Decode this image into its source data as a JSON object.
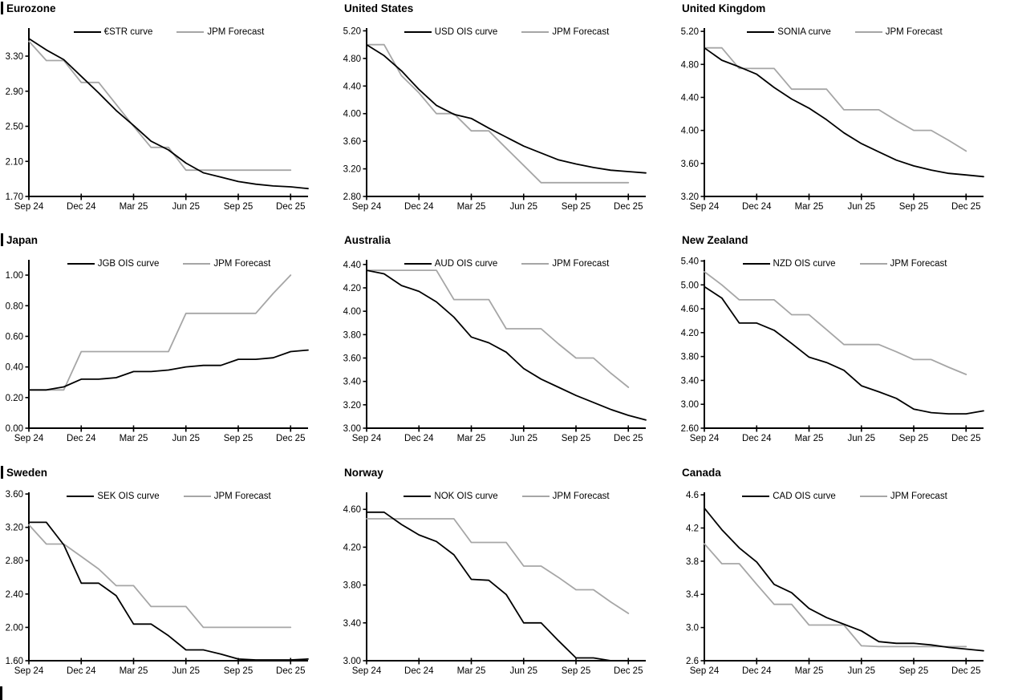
{
  "colors": {
    "main": "#000000",
    "forecast": "#a6a6a6",
    "axis": "#000000"
  },
  "x_axis": {
    "tick_labels": [
      "Sep 24",
      "Dec 24",
      "Mar 25",
      "Jun 25",
      "Sep 25",
      "Dec 25"
    ],
    "tick_positions": [
      0,
      3,
      6,
      9,
      12,
      15
    ],
    "x_max": 16
  },
  "chart_data": [
    {
      "type": "line",
      "title": "Eurozone",
      "title_bar": true,
      "ylim": [
        1.7,
        3.62
      ],
      "y_ticks": [
        1.7,
        2.1,
        2.5,
        2.9,
        3.3
      ],
      "y_decimals": 2,
      "series": [
        {
          "name": "€STR curve",
          "color_key": "main",
          "values": [
            3.5,
            3.37,
            3.26,
            3.07,
            2.88,
            2.68,
            2.51,
            2.33,
            2.23,
            2.08,
            1.97,
            1.92,
            1.87,
            1.84,
            1.82,
            1.81,
            1.79
          ]
        },
        {
          "name": "JPM Forecast",
          "color_key": "forecast",
          "values": [
            3.47,
            3.25,
            3.25,
            3.0,
            3.0,
            2.75,
            2.5,
            2.26,
            2.26,
            2.0,
            2.0,
            2.0,
            2.0,
            2.0,
            2.0,
            2.0
          ]
        }
      ]
    },
    {
      "type": "line",
      "title": "United States",
      "title_bar": false,
      "ylim": [
        2.8,
        5.24
      ],
      "y_ticks": [
        2.8,
        3.2,
        3.6,
        4.0,
        4.4,
        4.8,
        5.2
      ],
      "y_decimals": 2,
      "series": [
        {
          "name": "USD OIS curve",
          "color_key": "main",
          "values": [
            5.0,
            4.84,
            4.62,
            4.35,
            4.12,
            3.99,
            3.93,
            3.79,
            3.66,
            3.53,
            3.43,
            3.33,
            3.27,
            3.22,
            3.18,
            3.16,
            3.14
          ]
        },
        {
          "name": "JPM Forecast",
          "color_key": "forecast",
          "values": [
            5.0,
            5.0,
            4.55,
            4.3,
            4.0,
            4.0,
            3.75,
            3.75,
            3.5,
            3.25,
            3.0,
            3.0,
            3.0,
            3.0,
            3.0,
            3.0
          ]
        }
      ]
    },
    {
      "type": "line",
      "title": "United Kingdom",
      "title_bar": false,
      "ylim": [
        3.2,
        5.24
      ],
      "y_ticks": [
        3.2,
        3.6,
        4.0,
        4.4,
        4.8,
        5.2
      ],
      "y_decimals": 2,
      "series": [
        {
          "name": "SONIA curve",
          "color_key": "main",
          "values": [
            5.0,
            4.85,
            4.77,
            4.68,
            4.52,
            4.38,
            4.27,
            4.13,
            3.97,
            3.84,
            3.74,
            3.64,
            3.57,
            3.52,
            3.48,
            3.46,
            3.44
          ]
        },
        {
          "name": "JPM Forecast",
          "color_key": "forecast",
          "values": [
            5.0,
            5.0,
            4.75,
            4.75,
            4.75,
            4.5,
            4.5,
            4.5,
            4.25,
            4.25,
            4.25,
            4.12,
            4.0,
            4.0,
            3.88,
            3.75
          ]
        }
      ]
    },
    {
      "type": "line",
      "title": "Japan",
      "title_bar": true,
      "ylim": [
        0.0,
        1.1
      ],
      "y_ticks": [
        0.0,
        0.2,
        0.4,
        0.6,
        0.8,
        1.0
      ],
      "y_decimals": 2,
      "series": [
        {
          "name": "JGB OIS curve",
          "color_key": "main",
          "values": [
            0.25,
            0.25,
            0.27,
            0.32,
            0.32,
            0.33,
            0.37,
            0.37,
            0.38,
            0.4,
            0.41,
            0.41,
            0.45,
            0.45,
            0.46,
            0.5,
            0.51
          ]
        },
        {
          "name": "JPM Forecast",
          "color_key": "forecast",
          "values": [
            0.25,
            0.25,
            0.25,
            0.5,
            0.5,
            0.5,
            0.5,
            0.5,
            0.5,
            0.75,
            0.75,
            0.75,
            0.75,
            0.75,
            0.88,
            1.0
          ]
        }
      ]
    },
    {
      "type": "line",
      "title": "Australia",
      "title_bar": false,
      "ylim": [
        3.0,
        4.44
      ],
      "y_ticks": [
        3.0,
        3.2,
        3.4,
        3.6,
        3.8,
        4.0,
        4.2,
        4.4
      ],
      "y_decimals": 2,
      "series": [
        {
          "name": "AUD OIS curve",
          "color_key": "main",
          "values": [
            4.35,
            4.32,
            4.22,
            4.17,
            4.08,
            3.95,
            3.78,
            3.73,
            3.65,
            3.51,
            3.42,
            3.35,
            3.28,
            3.22,
            3.16,
            3.11,
            3.07
          ]
        },
        {
          "name": "JPM Forecast",
          "color_key": "forecast",
          "values": [
            4.35,
            4.35,
            4.35,
            4.35,
            4.35,
            4.1,
            4.1,
            4.1,
            3.85,
            3.85,
            3.85,
            3.72,
            3.6,
            3.6,
            3.47,
            3.35
          ]
        }
      ]
    },
    {
      "type": "line",
      "title": "New Zealand",
      "title_bar": false,
      "ylim": [
        2.6,
        5.42
      ],
      "y_ticks": [
        2.6,
        3.0,
        3.4,
        3.8,
        4.2,
        4.6,
        5.0,
        5.4
      ],
      "y_decimals": 2,
      "series": [
        {
          "name": "NZD OIS curve",
          "color_key": "main",
          "values": [
            4.97,
            4.78,
            4.36,
            4.36,
            4.24,
            4.02,
            3.79,
            3.7,
            3.57,
            3.31,
            3.21,
            3.1,
            2.92,
            2.86,
            2.84,
            2.84,
            2.89
          ]
        },
        {
          "name": "JPM Forecast",
          "color_key": "forecast",
          "values": [
            5.22,
            5.0,
            4.75,
            4.75,
            4.75,
            4.5,
            4.5,
            4.25,
            4.0,
            4.0,
            4.0,
            3.88,
            3.75,
            3.75,
            3.62,
            3.5
          ]
        }
      ]
    },
    {
      "type": "line",
      "title": "Sweden",
      "title_bar": true,
      "ylim": [
        1.6,
        3.62
      ],
      "y_ticks": [
        1.6,
        2.0,
        2.4,
        2.8,
        3.2,
        3.6
      ],
      "y_decimals": 2,
      "series": [
        {
          "name": "SEK OIS curve",
          "color_key": "main",
          "values": [
            3.26,
            3.26,
            2.99,
            2.53,
            2.53,
            2.38,
            2.04,
            2.04,
            1.9,
            1.73,
            1.73,
            1.68,
            1.62,
            1.61,
            1.61,
            1.61,
            1.62
          ]
        },
        {
          "name": "JPM Forecast",
          "color_key": "forecast",
          "values": [
            3.23,
            3.0,
            3.0,
            2.85,
            2.7,
            2.5,
            2.5,
            2.25,
            2.25,
            2.25,
            2.0,
            2.0,
            2.0,
            2.0,
            2.0,
            2.0
          ]
        }
      ]
    },
    {
      "type": "line",
      "title": "Norway",
      "title_bar": false,
      "ylim": [
        3.0,
        4.78
      ],
      "y_ticks": [
        3.0,
        3.4,
        3.8,
        4.2,
        4.6
      ],
      "y_decimals": 2,
      "series": [
        {
          "name": "NOK OIS curve",
          "color_key": "main",
          "values": [
            4.57,
            4.57,
            4.44,
            4.33,
            4.26,
            4.12,
            3.86,
            3.85,
            3.7,
            3.4,
            3.4,
            3.21,
            3.03,
            3.03,
            3.0
          ]
        },
        {
          "name": "JPM Forecast",
          "color_key": "forecast",
          "values": [
            4.5,
            4.5,
            4.5,
            4.5,
            4.5,
            4.5,
            4.25,
            4.25,
            4.25,
            4.0,
            4.0,
            3.88,
            3.75,
            3.75,
            3.62,
            3.5
          ]
        }
      ]
    },
    {
      "type": "line",
      "title": "Canada",
      "title_bar": false,
      "ylim": [
        2.6,
        4.63
      ],
      "y_ticks": [
        2.6,
        3.0,
        3.4,
        3.8,
        4.2,
        4.6
      ],
      "y_decimals": 1,
      "series": [
        {
          "name": "CAD OIS curve",
          "color_key": "main",
          "values": [
            4.44,
            4.18,
            3.96,
            3.79,
            3.52,
            3.42,
            3.23,
            3.12,
            3.04,
            2.96,
            2.83,
            2.81,
            2.81,
            2.79,
            2.76,
            2.74,
            2.72
          ]
        },
        {
          "name": "JPM Forecast",
          "color_key": "forecast",
          "values": [
            4.01,
            3.77,
            3.77,
            3.52,
            3.28,
            3.28,
            3.03,
            3.03,
            3.03,
            2.78,
            2.77,
            2.77,
            2.77,
            2.77,
            2.77,
            2.77
          ]
        }
      ]
    }
  ]
}
